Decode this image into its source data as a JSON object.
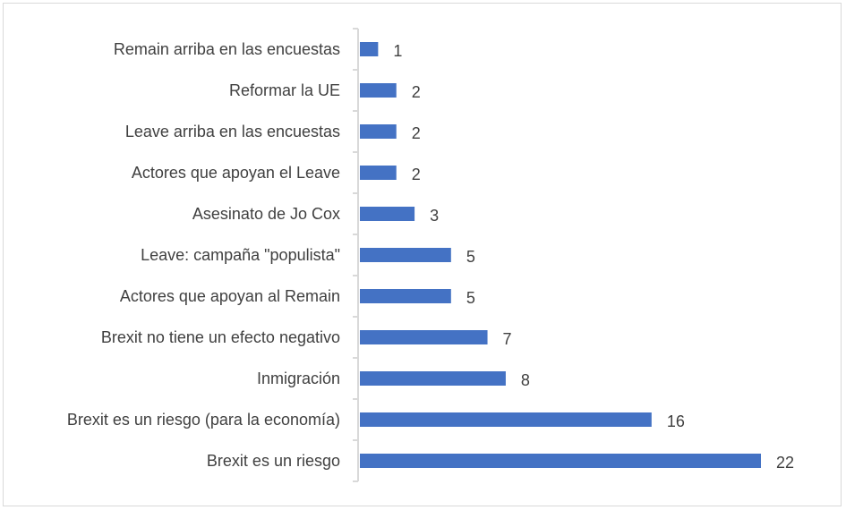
{
  "chart_data": {
    "type": "bar",
    "orientation": "horizontal",
    "categories": [
      "Remain arriba en las encuestas",
      "Reformar la UE",
      "Leave arriba en las encuestas",
      "Actores que apoyan el Leave",
      "Asesinato de Jo Cox",
      "Leave: campaña \"populista\"",
      "Actores que apoyan al Remain",
      "Brexit no tiene un efecto negativo",
      "Inmigración",
      "Brexit es un riesgo (para la economía)",
      "Brexit es un riesgo"
    ],
    "values": [
      1,
      2,
      2,
      2,
      3,
      5,
      5,
      7,
      8,
      16,
      22
    ],
    "data_labels": [
      "1",
      "2",
      "2",
      "2",
      "3",
      "5",
      "5",
      "7",
      "8",
      "16",
      "22"
    ],
    "title": "",
    "xlabel": "",
    "ylabel": "",
    "xlim": [
      0,
      22
    ],
    "grid": false,
    "legend": "none",
    "bar_color": "#4472C4"
  }
}
